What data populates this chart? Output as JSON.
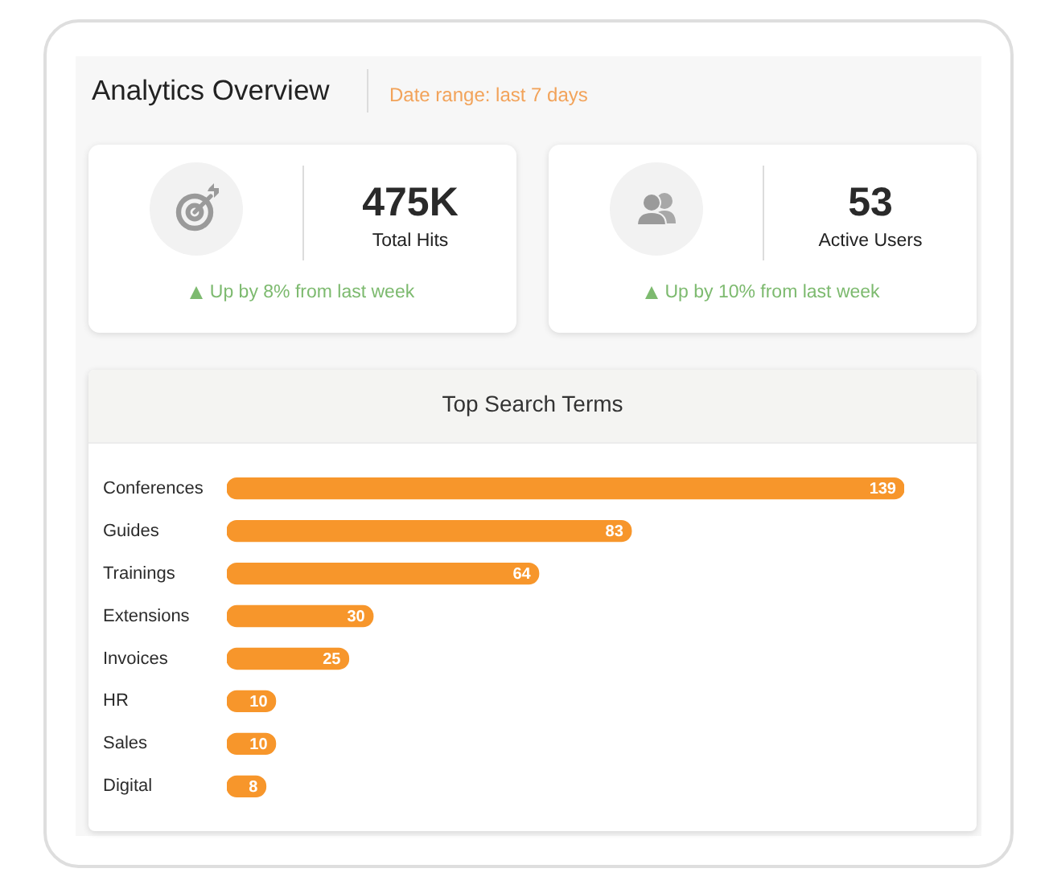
{
  "chart_data": [
    {
      "type": "other",
      "title": "Analytics Overview",
      "subtitle": "Date range: last 7 days"
    },
    {
      "type": "other",
      "title": "475K",
      "subtitle": "Total Hits",
      "annotations": [
        "Up by 8% from last week"
      ]
    },
    {
      "type": "other",
      "title": "53",
      "subtitle": "Active Users",
      "annotations": [
        "Up by 10% from last week"
      ]
    },
    {
      "type": "bar",
      "orientation": "horizontal",
      "title": "Top Search Terms",
      "categories": [
        "Conferences",
        "Guides",
        "Trainings",
        "Extensions",
        "Invoices",
        "HR",
        "Sales",
        "Digital"
      ],
      "values": [
        139,
        83,
        64,
        30,
        25,
        10,
        10,
        8
      ],
      "color": "#f7962b",
      "data_labels": true,
      "tick_labels": "y"
    }
  ]
}
